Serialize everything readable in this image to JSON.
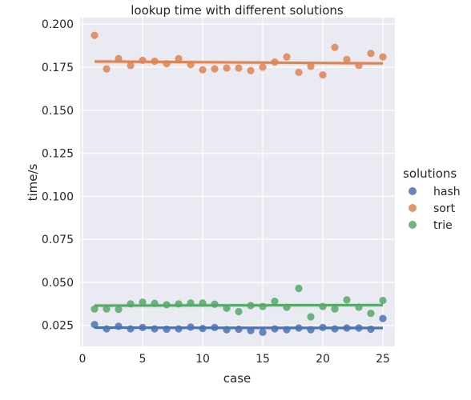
{
  "chart_data": {
    "type": "scatter",
    "title": "lookup time with different solutions",
    "xlabel": "case",
    "ylabel": "time/s",
    "xlim": [
      -0.2,
      26.0
    ],
    "ylim": [
      0.0128,
      0.2038
    ],
    "xticks": [
      0,
      5,
      10,
      15,
      20,
      25
    ],
    "yticks": [
      0.025,
      0.05,
      0.075,
      0.1,
      0.125,
      0.15,
      0.175,
      0.2
    ],
    "ytick_labels": [
      "0.025",
      "0.050",
      "0.075",
      "0.100",
      "0.125",
      "0.150",
      "0.175",
      "0.200"
    ],
    "grid": true,
    "legend_title": "solutions",
    "legend_position": "right",
    "x": [
      1,
      2,
      3,
      4,
      5,
      6,
      7,
      8,
      9,
      10,
      11,
      12,
      13,
      14,
      15,
      16,
      17,
      18,
      19,
      20,
      21,
      22,
      23,
      24,
      25
    ],
    "series": [
      {
        "name": "hash",
        "color": "#4c72b0",
        "values": [
          0.0255,
          0.023,
          0.0245,
          0.023,
          0.0238,
          0.023,
          0.0228,
          0.023,
          0.024,
          0.0232,
          0.0238,
          0.0225,
          0.0228,
          0.022,
          0.021,
          0.023,
          0.0225,
          0.0235,
          0.0225,
          0.0238,
          0.023,
          0.0235,
          0.0235,
          0.0228,
          0.029
        ],
        "fit": [
          0.0237,
          0.0235
        ]
      },
      {
        "name": "sort",
        "color": "#dd8452",
        "values": [
          0.1935,
          0.174,
          0.18,
          0.176,
          0.179,
          0.1785,
          0.177,
          0.18,
          0.1765,
          0.1735,
          0.174,
          0.1745,
          0.1745,
          0.173,
          0.175,
          0.178,
          0.181,
          0.172,
          0.1755,
          0.1705,
          0.1865,
          0.1795,
          0.176,
          0.183,
          0.181
        ],
        "fit": [
          0.1783,
          0.1772
        ]
      },
      {
        "name": "trie",
        "color": "#55a868",
        "values": [
          0.0345,
          0.0345,
          0.0343,
          0.0375,
          0.0385,
          0.0378,
          0.037,
          0.0375,
          0.038,
          0.038,
          0.0373,
          0.035,
          0.033,
          0.0365,
          0.036,
          0.039,
          0.0355,
          0.0465,
          0.03,
          0.036,
          0.0345,
          0.0398,
          0.0355,
          0.032,
          0.0395
        ],
        "fit": [
          0.0365,
          0.0368
        ]
      }
    ]
  }
}
